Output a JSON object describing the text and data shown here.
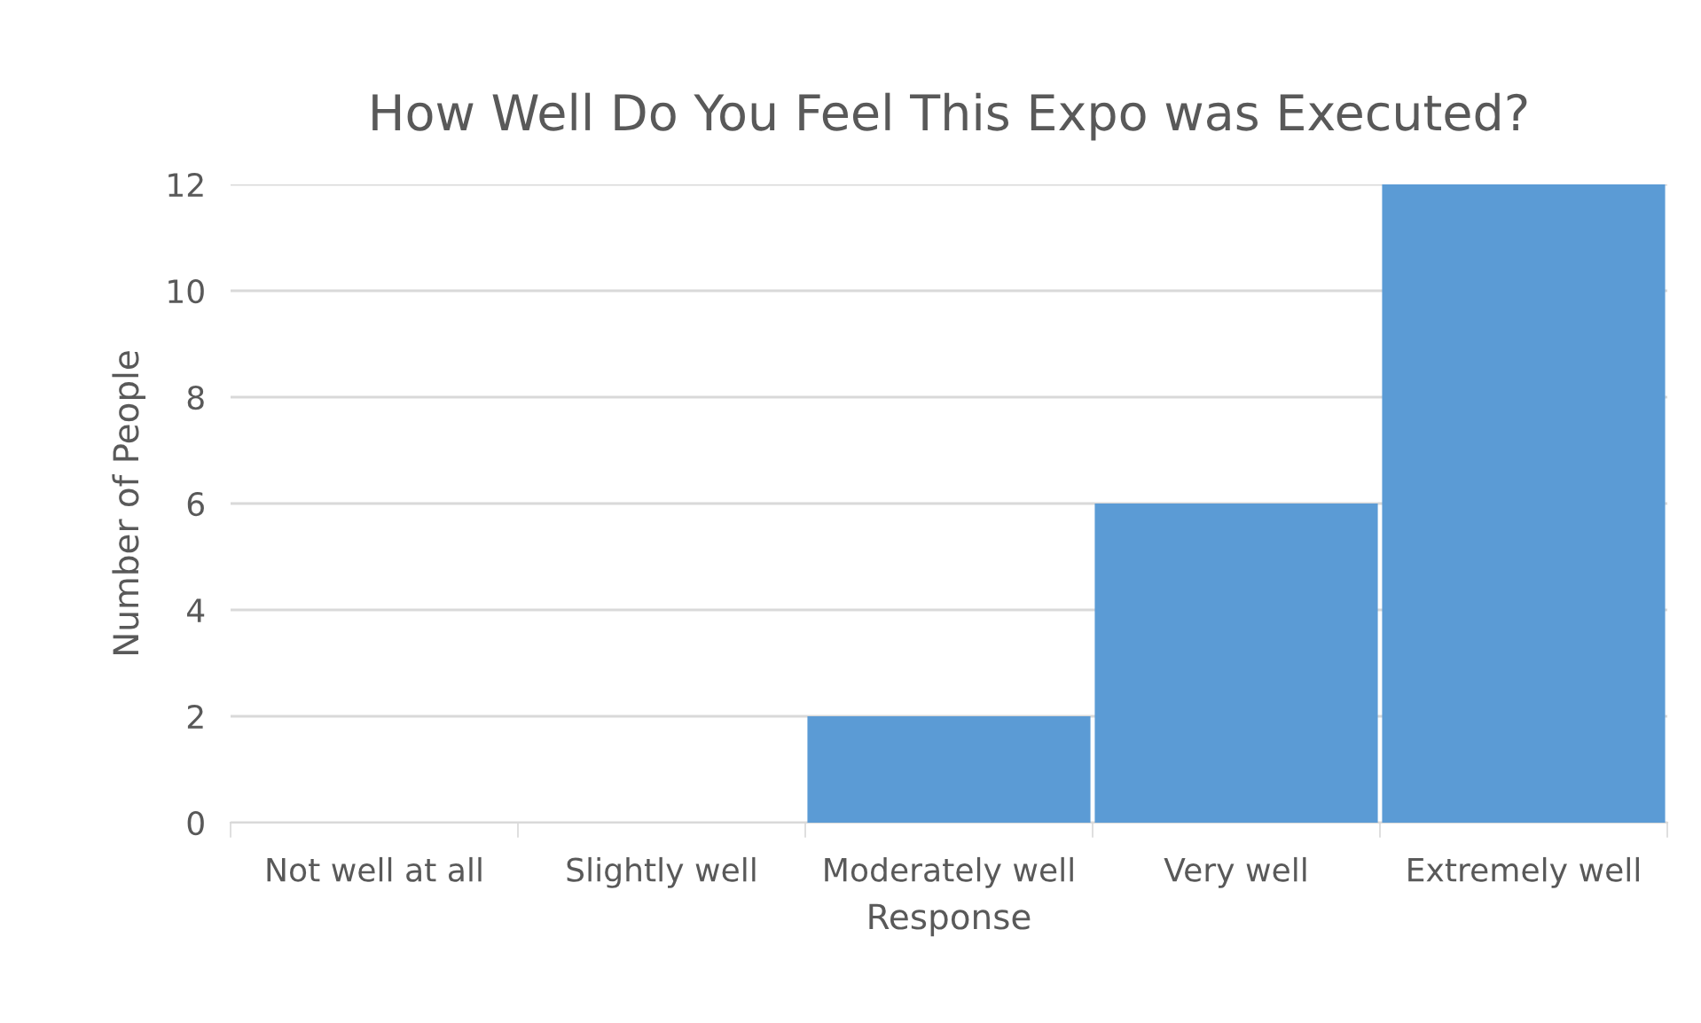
{
  "chart_data": {
    "type": "bar",
    "title": "How Well Do You Feel This Expo was Executed?",
    "xlabel": "Response",
    "ylabel": "Number of People",
    "categories": [
      "Not well at all",
      "Slightly well",
      "Moderately well",
      "Very well",
      "Extremely well"
    ],
    "values": [
      0,
      0,
      2,
      6,
      12
    ],
    "color": "#5b9bd5",
    "ylim": [
      0,
      12
    ],
    "yticks": [
      0,
      2,
      4,
      6,
      8,
      10,
      12
    ],
    "grid": "y"
  }
}
